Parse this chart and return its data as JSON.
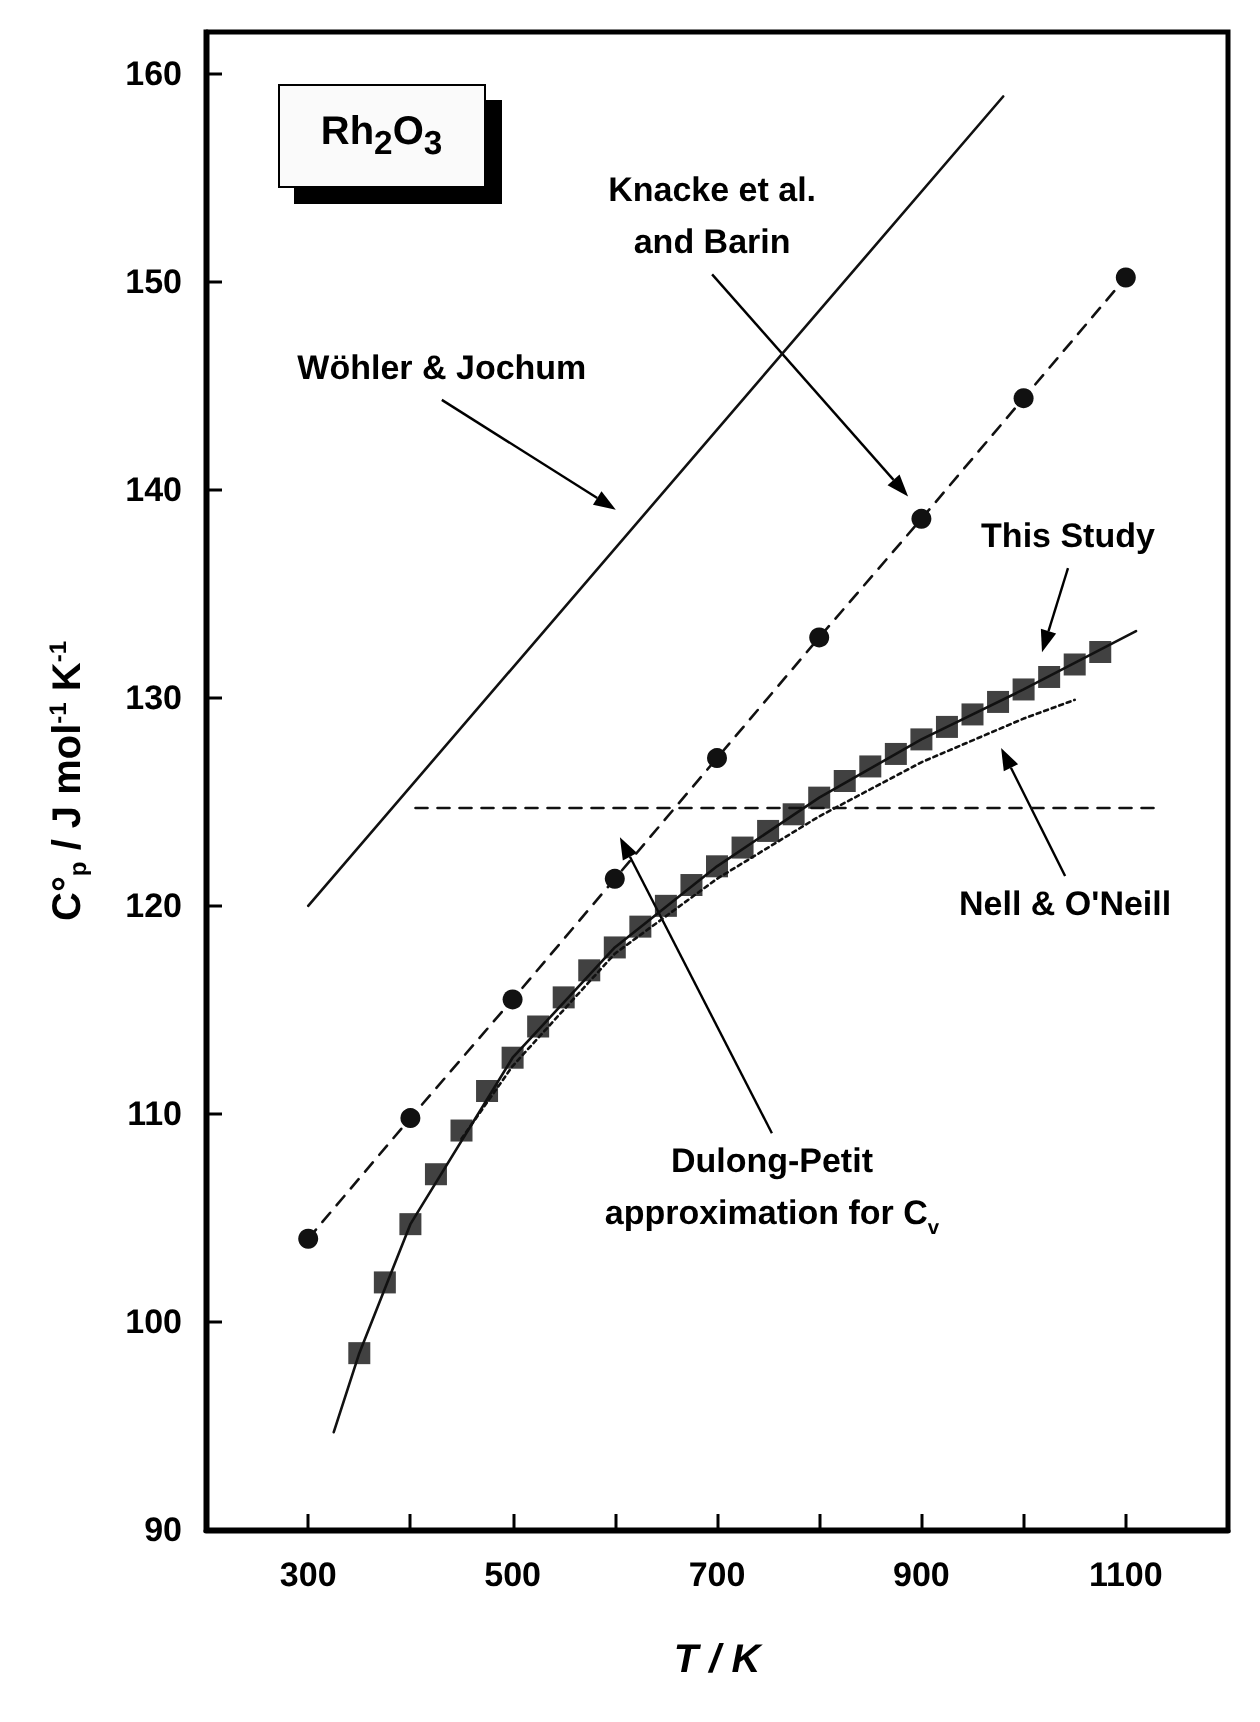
{
  "chart_data": {
    "type": "line",
    "xlabel": "T / K",
    "ylabel": "C°$_{p}$ / J mol$^{-1}$ K$^{-1}$",
    "xlim": [
      200,
      1200
    ],
    "ylim": [
      90,
      162
    ],
    "xticks": [
      300,
      {
        "value": 400,
        "label": null
      },
      500,
      {
        "value": 600,
        "label": null
      },
      700,
      {
        "value": 800,
        "label": null
      },
      900,
      {
        "value": 1000,
        "label": null
      },
      1100
    ],
    "yticks": [
      90,
      100,
      110,
      120,
      130,
      140,
      150,
      160
    ],
    "grid": false,
    "series": [
      {
        "color": "#111111",
        "marker": "none",
        "line_style": "solid",
        "x": [
          300,
          980
        ],
        "values": [
          120,
          158.9
        ]
      },
      {
        "color": "#111111",
        "marker": "circle",
        "line_style": "dashed",
        "x": [
          300,
          400,
          500,
          600,
          700,
          800,
          900,
          1000,
          1100
        ],
        "values": [
          104,
          109.8,
          115.5,
          121.3,
          127.1,
          132.9,
          138.6,
          144.4,
          150.2
        ]
      },
      {
        "type": "scatter",
        "color": "#111111",
        "marker": "square",
        "x": [
          350,
          375,
          400,
          425,
          450,
          475,
          500,
          525,
          550,
          575,
          600,
          625,
          650,
          675,
          700,
          725,
          750,
          775,
          800,
          825,
          850,
          875,
          900,
          925,
          950,
          975,
          1000,
          1025,
          1050,
          1075
        ],
        "values": [
          98.5,
          101.9,
          104.7,
          107.1,
          109.2,
          111.1,
          112.7,
          114.2,
          115.6,
          116.9,
          118.0,
          119.0,
          120.0,
          121.0,
          121.9,
          122.8,
          123.6,
          124.4,
          125.2,
          126.0,
          126.7,
          127.3,
          128.0,
          128.6,
          129.2,
          129.8,
          130.4,
          131.0,
          131.6,
          132.2
        ]
      },
      {
        "color": "#111111",
        "marker": "none",
        "line_style": "solid",
        "x": [
          325,
          350,
          400,
          500,
          600,
          700,
          800,
          900,
          1000,
          1110
        ],
        "values": [
          94.7,
          98.5,
          104.7,
          112.7,
          118.0,
          121.9,
          125.2,
          128.0,
          130.4,
          133.2
        ]
      },
      {
        "color": "#111111",
        "marker": "none",
        "line_style": "dotted",
        "x": [
          450,
          500,
          600,
          700,
          800,
          900,
          1000,
          1050
        ],
        "values": [
          108.8,
          112.3,
          117.7,
          121.3,
          124.3,
          126.9,
          129.0,
          129.9
        ]
      },
      {
        "color": "#111111",
        "marker": "none",
        "line_style": "dashed",
        "x": [
          405,
          1130
        ],
        "values": [
          124.7,
          124.7
        ]
      }
    ],
    "annotations": [
      "Rh$_{2}$O$_{3}$",
      "Wöhler & Jochum",
      "Knacke et al.\nand Barin",
      "This Study",
      "Nell & O'Neill",
      "Dulong-Petit\napproximation for C$_{v}$"
    ]
  }
}
